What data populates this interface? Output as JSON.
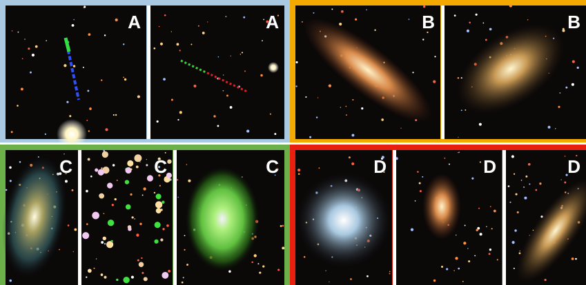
{
  "panels": [
    {
      "images": [
        {
          "label": "A"
        },
        {
          "label": "A"
        }
      ]
    },
    {
      "images": [
        {
          "label": "B"
        },
        {
          "label": "B"
        }
      ]
    },
    {
      "images": [
        {
          "label": "C"
        },
        {
          "label": "C"
        },
        {
          "label": "C"
        }
      ]
    },
    {
      "images": [
        {
          "label": "D"
        },
        {
          "label": "D"
        },
        {
          "label": "D"
        }
      ]
    }
  ]
}
